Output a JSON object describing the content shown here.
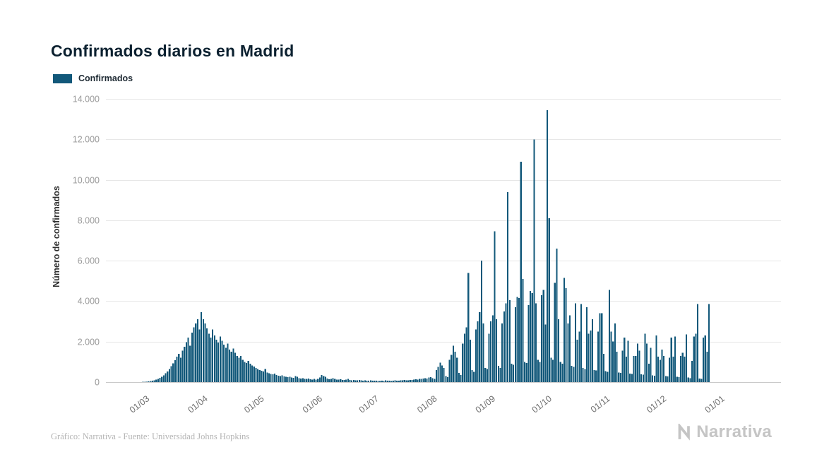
{
  "chart": {
    "title": "Confirmados diarios en Madrid",
    "legend": {
      "label": "Confirmados",
      "color": "#12587a"
    },
    "ylabel": "Número de confirmados",
    "credit": "Gráfico: Narrativa - Fuente: Universidad Johns Hopkins",
    "brand": "Narrativa"
  },
  "chart_data": {
    "type": "bar",
    "title": "Confirmados diarios en Madrid",
    "series_name": "Confirmados",
    "bar_color": "#12587a",
    "ylabel": "Número de confirmados",
    "ylim": [
      0,
      14000
    ],
    "grid": true,
    "legend_position": "top-left",
    "start_date": "2020-02-25",
    "y_ticks": [
      {
        "label": "0",
        "value": 0
      },
      {
        "label": "2.000",
        "value": 2000
      },
      {
        "label": "4.000",
        "value": 4000
      },
      {
        "label": "6.000",
        "value": 6000
      },
      {
        "label": "8.000",
        "value": 8000
      },
      {
        "label": "10.000",
        "value": 10000
      },
      {
        "label": "12.000",
        "value": 12000
      },
      {
        "label": "14.000",
        "value": 14000
      }
    ],
    "x_ticks": [
      {
        "label": "01/03",
        "day": 5
      },
      {
        "label": "01/04",
        "day": 36
      },
      {
        "label": "01/05",
        "day": 66
      },
      {
        "label": "01/06",
        "day": 97
      },
      {
        "label": "01/07",
        "day": 127
      },
      {
        "label": "01/08",
        "day": 158
      },
      {
        "label": "01/09",
        "day": 189
      },
      {
        "label": "01/10",
        "day": 219
      },
      {
        "label": "01/11",
        "day": 250
      },
      {
        "label": "01/12",
        "day": 280
      },
      {
        "label": "01/01",
        "day": 311
      }
    ],
    "values": [
      2,
      3,
      5,
      8,
      12,
      18,
      25,
      35,
      50,
      70,
      90,
      120,
      160,
      210,
      270,
      340,
      430,
      530,
      650,
      780,
      920,
      1080,
      1250,
      1400,
      1200,
      1550,
      1750,
      1980,
      2200,
      1800,
      2450,
      2700,
      2900,
      3100,
      2600,
      3450,
      3100,
      2900,
      2650,
      2400,
      2200,
      2600,
      2300,
      2100,
      1950,
      2250,
      2050,
      1850,
      1700,
      1900,
      1600,
      1500,
      1650,
      1450,
      1300,
      1200,
      1300,
      1100,
      1000,
      950,
      1050,
      900,
      820,
      760,
      700,
      650,
      600,
      560,
      520,
      640,
      480,
      440,
      400,
      380,
      420,
      350,
      320,
      300,
      340,
      280,
      260,
      240,
      270,
      230,
      210,
      300,
      260,
      190,
      170,
      200,
      160,
      150,
      170,
      140,
      130,
      150,
      120,
      160,
      220,
      350,
      300,
      260,
      180,
      140,
      160,
      200,
      150,
      130,
      120,
      140,
      110,
      100,
      120,
      150,
      110,
      90,
      100,
      80,
      90,
      110,
      85,
      75,
      90,
      70,
      65,
      80,
      70,
      75,
      65,
      60,
      55,
      70,
      60,
      80,
      70,
      65,
      60,
      75,
      85,
      70,
      65,
      90,
      80,
      100,
      90,
      85,
      110,
      100,
      120,
      140,
      130,
      160,
      150,
      180,
      200,
      170,
      220,
      250,
      200,
      150,
      600,
      750,
      960,
      820,
      700,
      300,
      250,
      1100,
      1350,
      1800,
      1500,
      1200,
      450,
      350,
      1900,
      2400,
      2700,
      5400,
      2100,
      600,
      500,
      2600,
      3000,
      3450,
      6000,
      2900,
      700,
      650,
      2400,
      3000,
      3300,
      7450,
      3100,
      800,
      700,
      2900,
      3500,
      3900,
      9400,
      4050,
      900,
      850,
      3700,
      4200,
      4150,
      10900,
      5100,
      1000,
      950,
      3800,
      4500,
      4400,
      12000,
      3900,
      1100,
      1000,
      4300,
      4550,
      2850,
      13450,
      8100,
      1200,
      1100,
      4900,
      6600,
      3100,
      1000,
      900,
      5150,
      4650,
      2900,
      3300,
      800,
      750,
      3900,
      2100,
      2500,
      3850,
      700,
      650,
      3700,
      2400,
      2550,
      3100,
      600,
      580,
      2500,
      3400,
      3400,
      1400,
      550,
      500,
      4550,
      2500,
      2000,
      2900,
      1500,
      480,
      450,
      1550,
      2200,
      1250,
      2050,
      420,
      400,
      1300,
      1300,
      1900,
      1550,
      380,
      360,
      2400,
      1900,
      900,
      1700,
      340,
      320,
      2300,
      1250,
      1100,
      1600,
      1300,
      300,
      280,
      1200,
      2200,
      1250,
      2250,
      260,
      240,
      1300,
      1450,
      1250,
      2350,
      220,
      200,
      1050,
      2250,
      2400,
      3850,
      180,
      160,
      2200,
      2300,
      1500,
      3850
    ]
  }
}
